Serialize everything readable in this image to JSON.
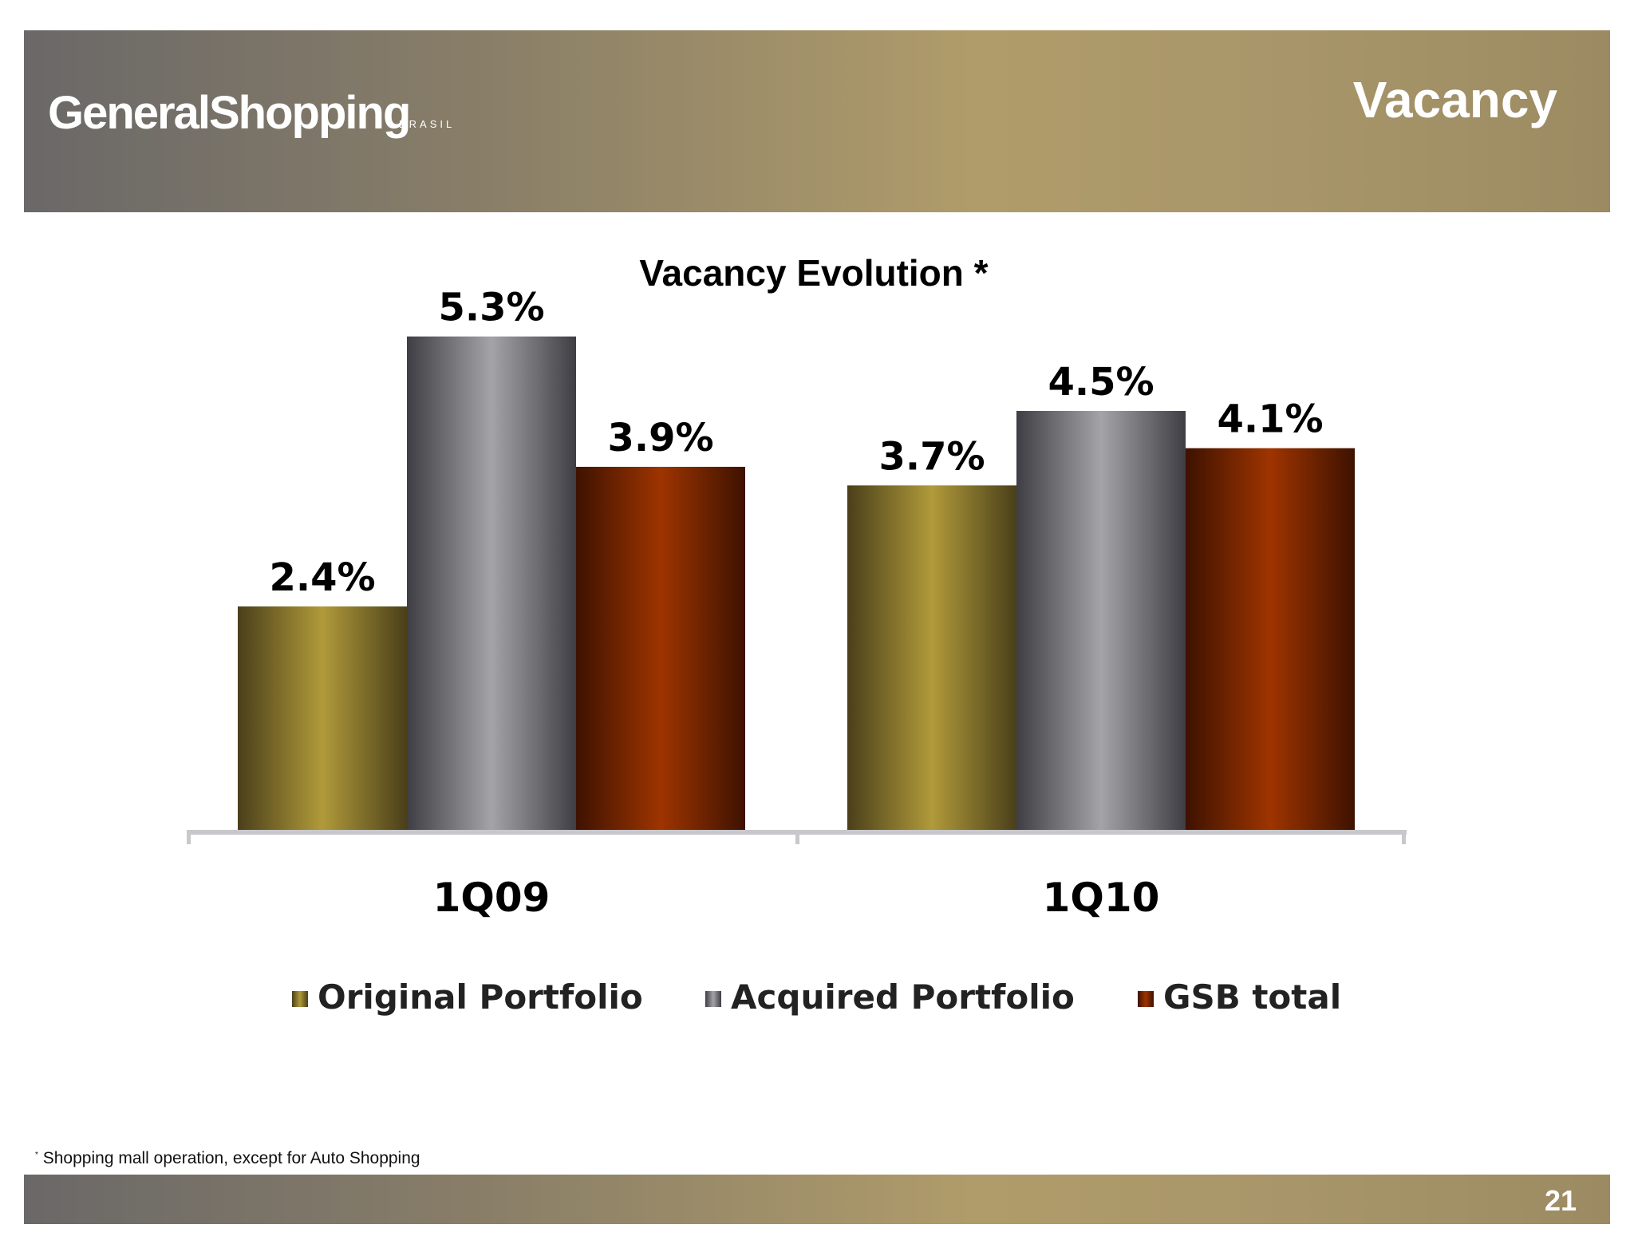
{
  "header": {
    "logo_text": "GeneralShopping",
    "logo_sup": "BRASIL",
    "page_heading": "Vacancy"
  },
  "footer": {
    "footnote_mark": "*",
    "footnote_text": "Shopping mall operation, except for Auto Shopping",
    "page_number": "21"
  },
  "chart_data": {
    "type": "bar",
    "title": "Vacancy Evolution *",
    "categories": [
      "1Q09",
      "1Q10"
    ],
    "series": [
      {
        "name": "Original Portfolio",
        "values": [
          2.4,
          3.7
        ],
        "labels": [
          "2.4%",
          "3.7%"
        ],
        "color_dark": "#4a3f1a",
        "color_light": "#b09a3a"
      },
      {
        "name": "Acquired Portfolio",
        "values": [
          5.3,
          4.5
        ],
        "labels": [
          "5.3%",
          "4.5%"
        ],
        "color_dark": "#3e3e44",
        "color_light": "#a4a4a8"
      },
      {
        "name": "GSB total",
        "values": [
          3.9,
          4.1
        ],
        "labels": [
          "3.9%",
          "4.1%"
        ],
        "color_dark": "#3e1200",
        "color_light": "#9e3400"
      }
    ],
    "ylim": [
      0,
      6
    ],
    "grid": false,
    "legend": "bottom"
  }
}
